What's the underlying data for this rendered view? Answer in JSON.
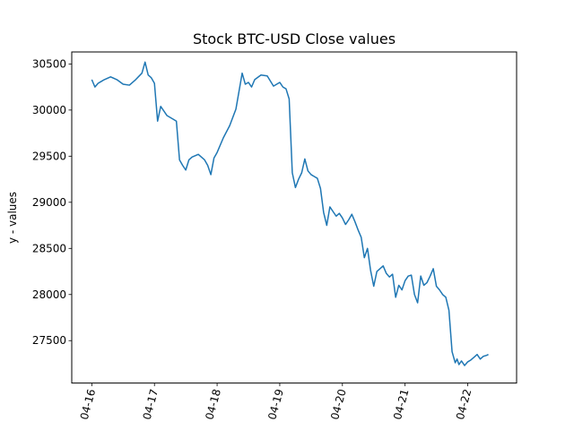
{
  "chart_data": {
    "type": "line",
    "title": "Stock BTC-USD Close values",
    "xlabel": "",
    "ylabel": "y - values",
    "x_tick_labels": [
      "04-16",
      "04-17",
      "04-18",
      "04-19",
      "04-20",
      "04-21",
      "04-22"
    ],
    "x_ticks_days": [
      0,
      1,
      2,
      3,
      4,
      5,
      6
    ],
    "xlim_days": [
      -0.32,
      6.78
    ],
    "y_ticks": [
      27500,
      28000,
      28500,
      29000,
      29500,
      30000,
      30500
    ],
    "ylim": [
      27040,
      30630
    ],
    "grid": false,
    "legend": "none",
    "series": [
      {
        "color": "#1f77b4",
        "x_days": [
          0.0,
          0.05,
          0.1,
          0.15,
          0.2,
          0.3,
          0.4,
          0.5,
          0.6,
          0.7,
          0.8,
          0.85,
          0.9,
          0.95,
          1.0,
          1.05,
          1.1,
          1.2,
          1.3,
          1.35,
          1.4,
          1.45,
          1.5,
          1.55,
          1.6,
          1.7,
          1.8,
          1.85,
          1.9,
          1.95,
          2.0,
          2.1,
          2.2,
          2.3,
          2.4,
          2.45,
          2.5,
          2.55,
          2.6,
          2.7,
          2.8,
          2.9,
          3.0,
          3.05,
          3.1,
          3.15,
          3.2,
          3.25,
          3.3,
          3.35,
          3.4,
          3.45,
          3.5,
          3.55,
          3.6,
          3.65,
          3.7,
          3.75,
          3.8,
          3.85,
          3.9,
          3.95,
          4.0,
          4.05,
          4.1,
          4.15,
          4.2,
          4.25,
          4.3,
          4.35,
          4.4,
          4.45,
          4.5,
          4.55,
          4.6,
          4.65,
          4.7,
          4.75,
          4.8,
          4.85,
          4.9,
          4.95,
          5.0,
          5.05,
          5.1,
          5.15,
          5.2,
          5.25,
          5.3,
          5.35,
          5.4,
          5.45,
          5.5,
          5.55,
          5.6,
          5.65,
          5.7,
          5.75,
          5.8,
          5.83,
          5.86,
          5.9,
          5.95,
          6.0,
          6.05,
          6.1,
          6.15,
          6.2,
          6.25,
          6.3,
          6.33
        ],
        "y": [
          30330,
          30250,
          30290,
          30310,
          30330,
          30360,
          30330,
          30280,
          30270,
          30330,
          30400,
          30520,
          30380,
          30350,
          30290,
          29880,
          30040,
          29940,
          29900,
          29880,
          29460,
          29400,
          29350,
          29460,
          29490,
          29520,
          29460,
          29400,
          29300,
          29480,
          29540,
          29700,
          29830,
          30010,
          30400,
          30280,
          30300,
          30250,
          30330,
          30380,
          30370,
          30260,
          30300,
          30250,
          30230,
          30120,
          29320,
          29160,
          29250,
          29320,
          29470,
          29340,
          29300,
          29280,
          29260,
          29150,
          28890,
          28750,
          28950,
          28900,
          28850,
          28880,
          28830,
          28760,
          28810,
          28870,
          28790,
          28700,
          28620,
          28400,
          28500,
          28260,
          28090,
          28250,
          28280,
          28310,
          28230,
          28190,
          28220,
          27970,
          28100,
          28050,
          28150,
          28200,
          28210,
          28000,
          27910,
          28200,
          28100,
          28130,
          28200,
          28280,
          28090,
          28050,
          28000,
          27970,
          27830,
          27380,
          27260,
          27300,
          27240,
          27280,
          27230,
          27270,
          27290,
          27320,
          27350,
          27300,
          27330,
          27340,
          27350
        ]
      }
    ]
  }
}
